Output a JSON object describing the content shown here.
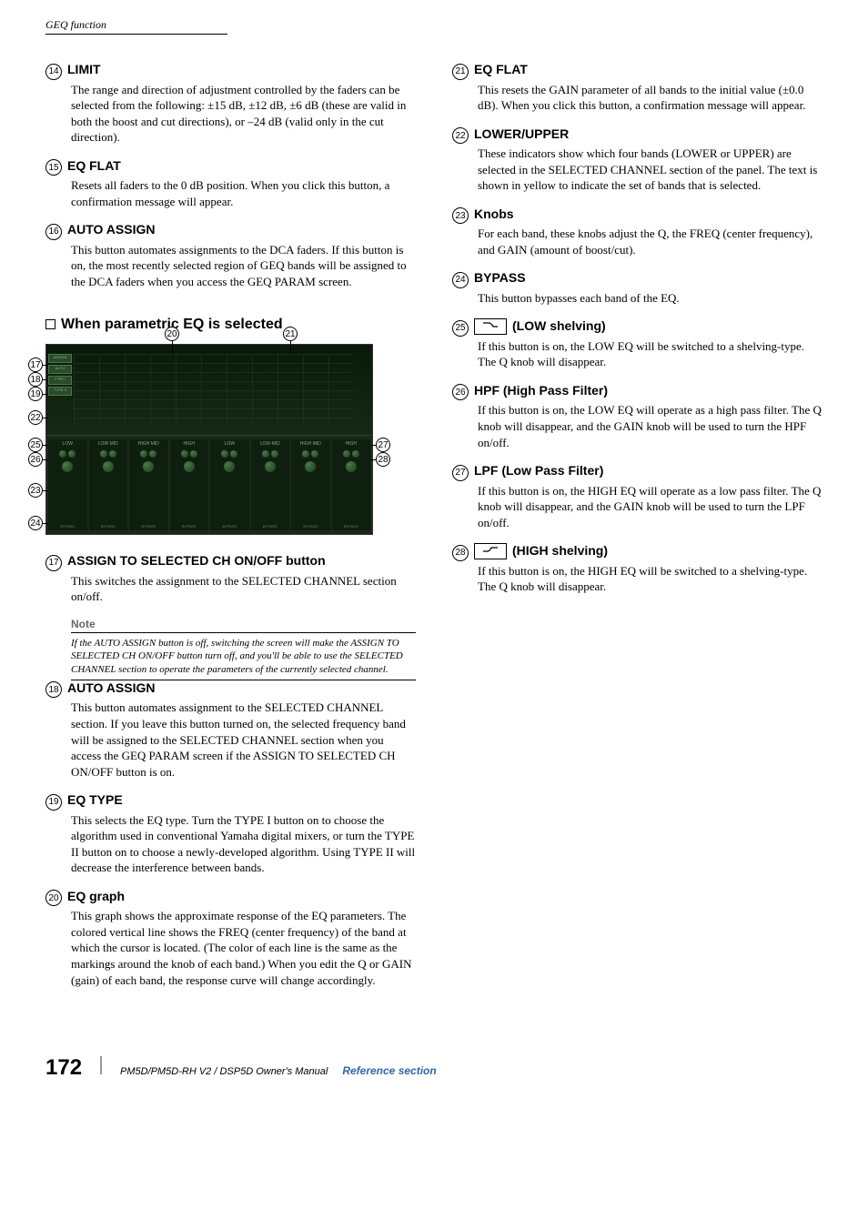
{
  "header": {
    "section": "GEQ function"
  },
  "section_heading": "When parametric EQ is selected",
  "left_items_a": [
    {
      "num": "14",
      "title": "LIMIT",
      "body": "The range and direction of adjustment controlled by the faders can be selected from the following: ±15 dB, ±12 dB, ±6 dB (these are valid in both the boost and cut directions), or –24 dB (valid only in the cut direction)."
    },
    {
      "num": "15",
      "title": "EQ FLAT",
      "body": "Resets all faders to the 0 dB position. When you click this button, a confirmation message will appear."
    },
    {
      "num": "16",
      "title": "AUTO ASSIGN",
      "body": "This button automates assignments to the DCA faders. If this button is on, the most recently selected region of GEQ bands will be assigned to the DCA faders when you access the GEQ PARAM screen."
    }
  ],
  "left_items_b": [
    {
      "num": "17",
      "title": "ASSIGN TO SELECTED CH ON/OFF button",
      "body": "This switches the assignment to the SELECTED CHANNEL section on/off."
    },
    {
      "num": "18",
      "title": "AUTO ASSIGN",
      "body": "This button automates assignment to the SELECTED CHANNEL section. If you leave this button turned on, the selected frequency band will be assigned to the SELECTED CHANNEL section when you access the GEQ PARAM screen if the ASSIGN TO SELECTED CH ON/OFF button is on."
    },
    {
      "num": "19",
      "title": "EQ TYPE",
      "body": "This selects the EQ type. Turn the TYPE I button on to choose the algorithm used in conventional Yamaha digital mixers, or turn the TYPE II button on to choose a newly-developed algorithm. Using TYPE II will decrease the interference between bands."
    },
    {
      "num": "20",
      "title": "EQ graph",
      "body": "This graph shows the approximate response of the EQ parameters. The colored vertical line shows the FREQ (center frequency) of the band at which the cursor is located. (The color of each line is the same as the markings around the knob of each band.) When you edit the Q or GAIN (gain) of each band, the response curve will change accordingly."
    }
  ],
  "note": {
    "label": "Note",
    "body": "If the AUTO ASSIGN button is off, switching the screen will make the ASSIGN TO SELECTED CH ON/OFF button turn off, and you'll be able to use the SELECTED CHANNEL section to operate the parameters of the currently selected channel."
  },
  "right_items": [
    {
      "num": "21",
      "title": "EQ FLAT",
      "body": "This resets the GAIN parameter of all bands to the initial value (±0.0 dB). When you click this button, a confirmation message will appear."
    },
    {
      "num": "22",
      "title": "LOWER/UPPER",
      "body": "These indicators show which four bands (LOWER or UPPER) are selected in the SELECTED CHANNEL section of the panel. The text is shown in yellow to indicate the set of bands that is selected."
    },
    {
      "num": "23",
      "title": "Knobs",
      "body": "For each band, these knobs adjust the Q, the FREQ (center frequency), and GAIN (amount of boost/cut)."
    },
    {
      "num": "24",
      "title": "BYPASS",
      "body": "This button bypasses each band of the EQ."
    },
    {
      "num": "25",
      "title": "(LOW shelving)",
      "icon": "low-shelf",
      "body": "If this button is on, the LOW EQ will be switched to a shelving-type. The Q knob will disappear."
    },
    {
      "num": "26",
      "title": "HPF (High Pass Filter)",
      "body": "If this button is on, the LOW EQ will operate as a high pass filter. The Q knob will disappear, and the GAIN knob will be used to turn the HPF on/off."
    },
    {
      "num": "27",
      "title": "LPF (Low Pass Filter)",
      "body": "If this button is on, the HIGH EQ will operate as a low pass filter. The Q knob will disappear, and the GAIN knob will be used to turn the LPF on/off."
    },
    {
      "num": "28",
      "title": "(HIGH shelving)",
      "icon": "high-shelf",
      "body": "If this button is on, the HIGH EQ will be switched to a shelving-type. The Q knob will disappear."
    }
  ],
  "screenshot": {
    "callouts_left": [
      "17",
      "18",
      "19",
      "22",
      "25",
      "26",
      "23",
      "24"
    ],
    "callouts_top": [
      "20",
      "21"
    ],
    "callouts_right": [
      "27",
      "28"
    ],
    "bands": [
      "LOW",
      "LOW MID",
      "HIGH MID",
      "HIGH",
      "LOW",
      "LOW MID",
      "HIGH MID",
      "HIGH"
    ],
    "side_buttons": [
      "ASSIGN",
      "AUTO",
      "TYPE I",
      "TYPE II"
    ]
  },
  "footer": {
    "page": "172",
    "manual": "PM5D/PM5D-RH V2 / DSP5D Owner's Manual",
    "section": "Reference section"
  }
}
